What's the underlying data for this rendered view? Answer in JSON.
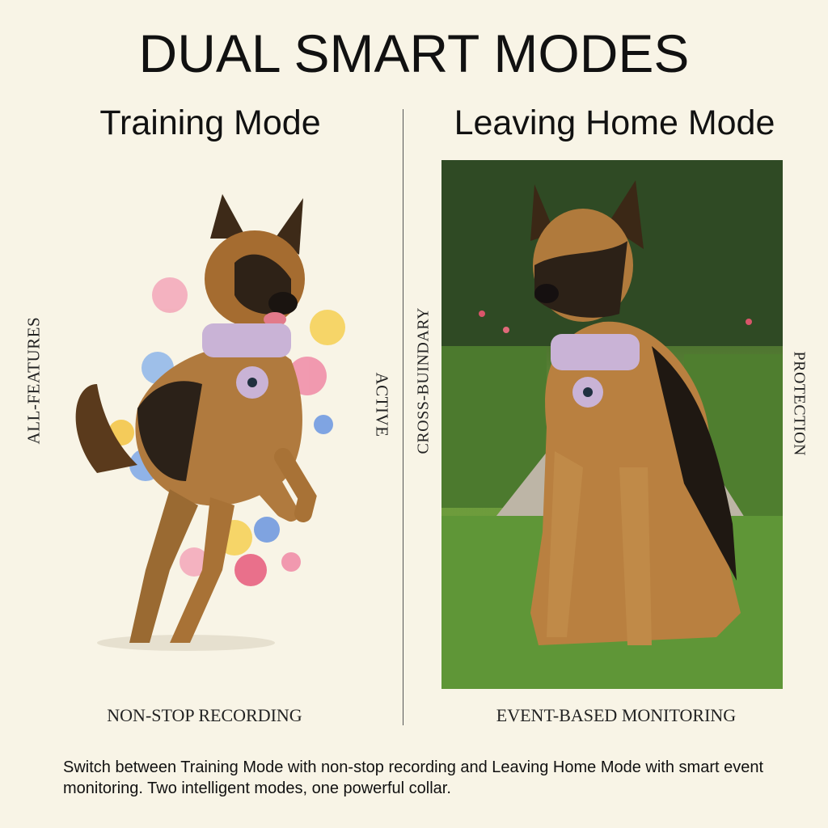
{
  "title": "DUAL SMART MODES",
  "left": {
    "heading": "Training Mode",
    "side_left": "ALL-FEATURES",
    "side_right": "ACTIVE",
    "caption": "NON-STOP RECORDING"
  },
  "right": {
    "heading": "Leaving Home Mode",
    "side_left": "CROSS-BUINDARY",
    "side_right": "PROTECTION",
    "caption": "EVENT-BASED MONITORING"
  },
  "description": "Switch between Training Mode with non-stop recording and Leaving Home Mode with smart event monitoring. Two intelligent modes, one powerful collar.",
  "colors": {
    "background": "#f8f4e6",
    "collar": "#c9b3d6"
  }
}
